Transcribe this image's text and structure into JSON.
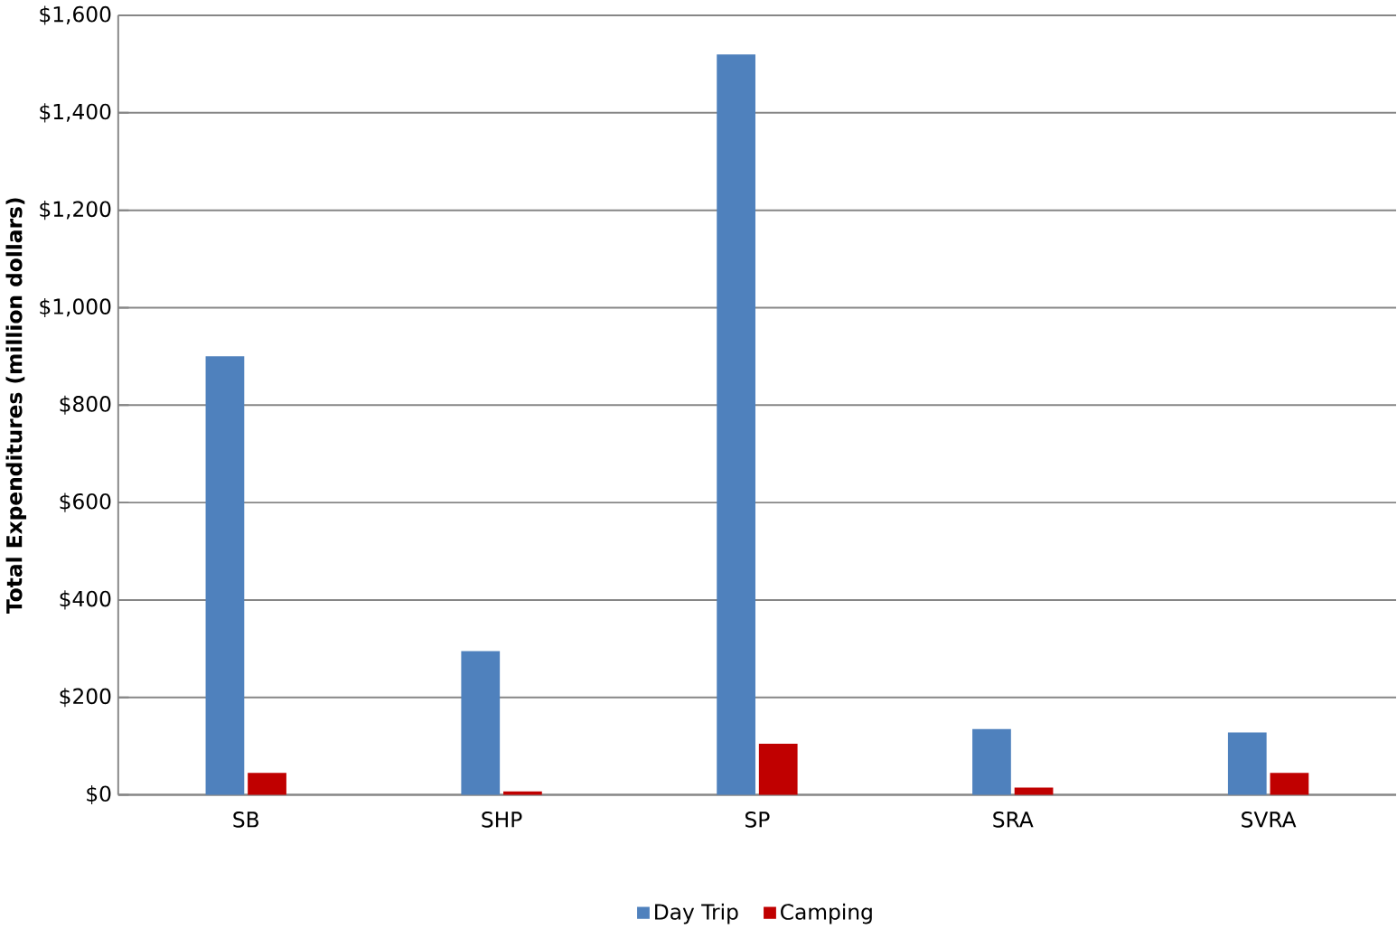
{
  "chart_data": {
    "type": "bar",
    "ylabel": "Total Expenditures (million dollars)",
    "categories": [
      "SB",
      "SHP",
      "SP",
      "SRA",
      "SVRA"
    ],
    "series": [
      {
        "name": "Day Trip",
        "color": "#4f81bd",
        "values": [
          900,
          295,
          1520,
          135,
          128
        ]
      },
      {
        "name": "Camping",
        "color": "#c00000",
        "values": [
          45,
          7,
          105,
          15,
          45
        ]
      }
    ],
    "ylim": [
      0,
      1600
    ],
    "yticks": [
      {
        "value": 0,
        "label": "$0"
      },
      {
        "value": 200,
        "label": "$200"
      },
      {
        "value": 400,
        "label": "$400"
      },
      {
        "value": 600,
        "label": "$600"
      },
      {
        "value": 800,
        "label": "$800"
      },
      {
        "value": 1000,
        "label": "$1,000"
      },
      {
        "value": 1200,
        "label": "$1,200"
      },
      {
        "value": 1400,
        "label": "$1,400"
      },
      {
        "value": 1600,
        "label": "$1,600"
      }
    ],
    "grid": "y",
    "legend": "bottom"
  }
}
